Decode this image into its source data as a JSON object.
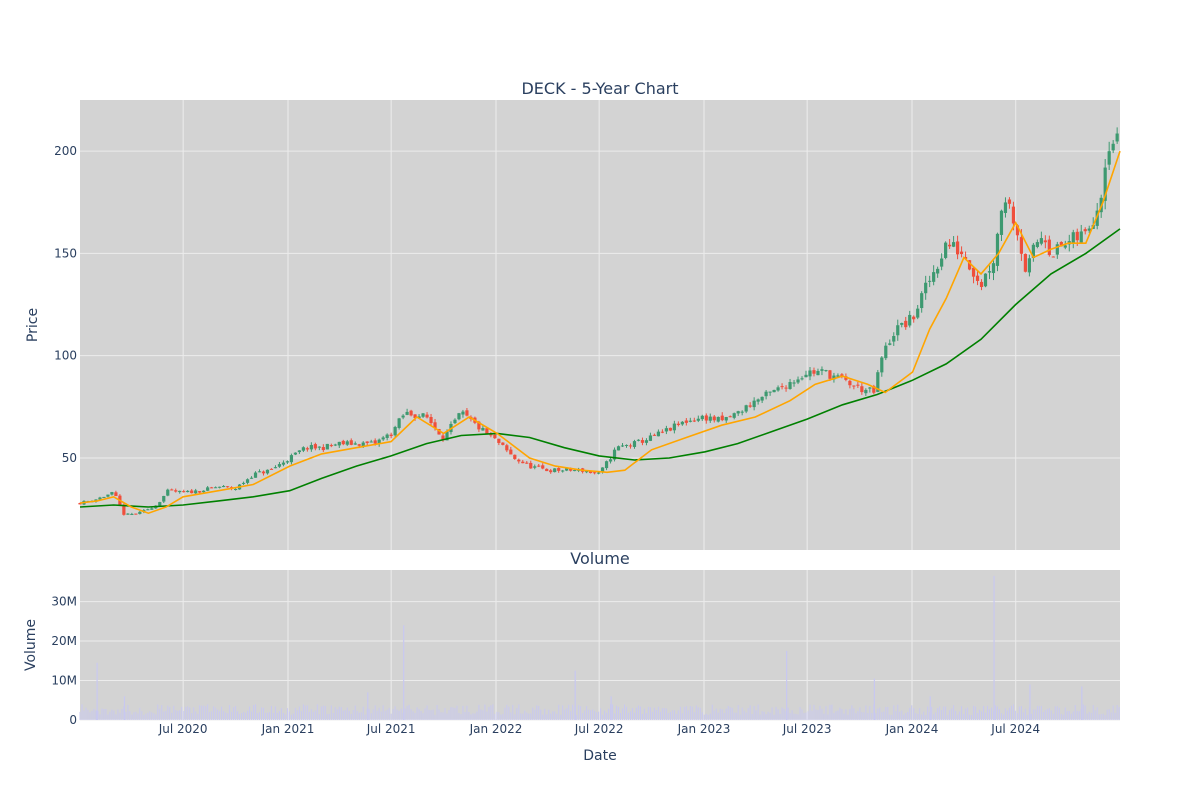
{
  "chart_data": [
    {
      "type": "candlestick",
      "title": "DECK - 5-Year Chart",
      "ylabel": "Price",
      "x_range": [
        "2020-01-02",
        "2024-12-31"
      ],
      "ylim": [
        5,
        225
      ],
      "y_ticks": [
        50,
        100,
        150,
        200
      ],
      "grid": true,
      "legend": "none",
      "colors": {
        "up": "#3d9970",
        "down": "#ef4f3c",
        "ma_short": "#ffa500",
        "ma_long": "#008000",
        "plot_bg": "#d3d3d3",
        "grid": "#ececec"
      },
      "series": [
        {
          "kind": "close",
          "x": [
            "2020-01-02",
            "2020-02-01",
            "2020-03-01",
            "2020-03-20",
            "2020-04-15",
            "2020-05-15",
            "2020-06-05",
            "2020-07-01",
            "2020-08-01",
            "2020-09-01",
            "2020-10-01",
            "2020-11-01",
            "2020-12-01",
            "2021-01-04",
            "2021-02-01",
            "2021-03-01",
            "2021-04-01",
            "2021-05-01",
            "2021-06-01",
            "2021-07-01",
            "2021-07-25",
            "2021-09-01",
            "2021-10-01",
            "2021-11-01",
            "2021-12-01",
            "2022-01-03",
            "2022-02-01",
            "2022-03-01",
            "2022-04-01",
            "2022-05-01",
            "2022-06-01",
            "2022-07-01",
            "2022-08-01",
            "2022-09-01",
            "2022-10-01",
            "2022-11-01",
            "2022-12-01",
            "2023-01-03",
            "2023-02-01",
            "2023-03-01",
            "2023-04-01",
            "2023-05-01",
            "2023-06-01",
            "2023-07-01",
            "2023-08-01",
            "2023-09-01",
            "2023-10-01",
            "2023-10-26",
            "2023-11-10",
            "2023-12-01",
            "2024-01-02",
            "2024-01-20",
            "2024-02-15",
            "2024-03-01",
            "2024-04-01",
            "2024-05-01",
            "2024-05-24",
            "2024-06-10",
            "2024-07-01",
            "2024-07-20",
            "2024-08-05",
            "2024-08-20",
            "2024-09-01",
            "2024-10-01",
            "2024-11-01",
            "2024-11-25",
            "2024-12-10",
            "2024-12-31"
          ],
          "values": [
            28,
            30,
            33,
            22,
            23,
            27,
            34,
            33,
            34,
            36,
            35,
            42,
            44,
            50,
            55,
            55,
            57,
            57,
            57,
            62,
            72,
            70,
            60,
            72,
            65,
            58,
            50,
            46,
            44,
            44,
            44,
            42,
            55,
            57,
            60,
            64,
            68,
            70,
            68,
            72,
            78,
            82,
            87,
            92,
            92,
            88,
            84,
            82,
            100,
            112,
            118,
            130,
            145,
            155,
            150,
            135,
            148,
            180,
            165,
            140,
            155,
            160,
            150,
            155,
            160,
            175,
            205,
            205
          ]
        },
        {
          "kind": "ma_short",
          "name": "",
          "color": "#ffa500",
          "x": [
            "2020-01-02",
            "2020-02-01",
            "2020-03-01",
            "2020-04-01",
            "2020-05-01",
            "2020-06-01",
            "2020-07-01",
            "2020-09-01",
            "2020-11-01",
            "2021-01-04",
            "2021-03-01",
            "2021-05-01",
            "2021-07-01",
            "2021-08-15",
            "2021-10-01",
            "2021-11-15",
            "2022-01-03",
            "2022-03-01",
            "2022-04-15",
            "2022-06-01",
            "2022-07-15",
            "2022-08-15",
            "2022-10-01",
            "2022-12-01",
            "2023-02-01",
            "2023-04-01",
            "2023-06-01",
            "2023-07-15",
            "2023-09-01",
            "2023-10-15",
            "2023-11-15",
            "2024-01-02",
            "2024-02-01",
            "2024-03-01",
            "2024-04-01",
            "2024-05-01",
            "2024-06-01",
            "2024-07-01",
            "2024-08-01",
            "2024-09-01",
            "2024-10-01",
            "2024-11-01",
            "2024-12-01",
            "2024-12-31"
          ],
          "values": [
            28,
            29,
            31,
            26,
            23,
            26,
            31,
            34,
            37,
            46,
            52,
            55,
            58,
            70,
            62,
            70,
            62,
            50,
            46,
            44,
            43,
            44,
            54,
            60,
            66,
            70,
            78,
            86,
            90,
            86,
            82,
            92,
            113,
            128,
            148,
            140,
            150,
            165,
            148,
            152,
            155,
            155,
            175,
            200
          ]
        },
        {
          "kind": "ma_long",
          "name": "",
          "color": "#008000",
          "x": [
            "2020-01-02",
            "2020-03-01",
            "2020-05-01",
            "2020-07-01",
            "2020-09-01",
            "2020-11-01",
            "2021-01-04",
            "2021-03-01",
            "2021-05-01",
            "2021-07-01",
            "2021-09-01",
            "2021-11-01",
            "2022-01-03",
            "2022-03-01",
            "2022-05-01",
            "2022-07-01",
            "2022-09-01",
            "2022-11-01",
            "2023-01-03",
            "2023-03-01",
            "2023-05-01",
            "2023-07-01",
            "2023-09-01",
            "2023-11-01",
            "2024-01-02",
            "2024-03-01",
            "2024-05-01",
            "2024-07-01",
            "2024-09-01",
            "2024-11-01",
            "2024-12-31"
          ],
          "values": [
            26,
            27,
            26,
            27,
            29,
            31,
            34,
            40,
            46,
            51,
            57,
            61,
            62,
            60,
            55,
            51,
            49,
            50,
            53,
            57,
            63,
            69,
            76,
            81,
            88,
            96,
            108,
            125,
            140,
            150,
            162
          ]
        }
      ]
    },
    {
      "type": "bar",
      "title": "Volume",
      "xlabel": "Date",
      "ylabel": "Volume",
      "ylim": [
        0,
        38000000
      ],
      "y_ticks": [
        {
          "v": 0,
          "label": "0"
        },
        {
          "v": 10000000,
          "label": "10M"
        },
        {
          "v": 20000000,
          "label": "20M"
        },
        {
          "v": 30000000,
          "label": "30M"
        }
      ],
      "x_ticks": [
        {
          "date": "2020-07-01",
          "label": "Jul 2020"
        },
        {
          "date": "2021-01-01",
          "label": "Jan 2021"
        },
        {
          "date": "2021-07-01",
          "label": "Jul 2021"
        },
        {
          "date": "2022-01-01",
          "label": "Jan 2022"
        },
        {
          "date": "2022-07-01",
          "label": "Jul 2022"
        },
        {
          "date": "2023-01-01",
          "label": "Jan 2023"
        },
        {
          "date": "2023-07-01",
          "label": "Jul 2023"
        },
        {
          "date": "2024-01-01",
          "label": "Jan 2024"
        },
        {
          "date": "2024-07-01",
          "label": "Jul 2024"
        }
      ],
      "bar_color": "#c8c8f0",
      "baseline_volume": 2500000,
      "spikes": [
        {
          "date": "2020-02-01",
          "value": 14500000
        },
        {
          "date": "2020-03-20",
          "value": 6000000
        },
        {
          "date": "2021-05-21",
          "value": 7000000
        },
        {
          "date": "2021-07-23",
          "value": 24000000
        },
        {
          "date": "2022-05-20",
          "value": 12500000
        },
        {
          "date": "2022-07-22",
          "value": 6000000
        },
        {
          "date": "2023-05-26",
          "value": 17500000
        },
        {
          "date": "2023-10-27",
          "value": 10500000
        },
        {
          "date": "2024-02-02",
          "value": 6000000
        },
        {
          "date": "2024-05-24",
          "value": 36500000
        },
        {
          "date": "2024-07-26",
          "value": 9000000
        },
        {
          "date": "2024-10-25",
          "value": 8500000
        }
      ]
    }
  ]
}
